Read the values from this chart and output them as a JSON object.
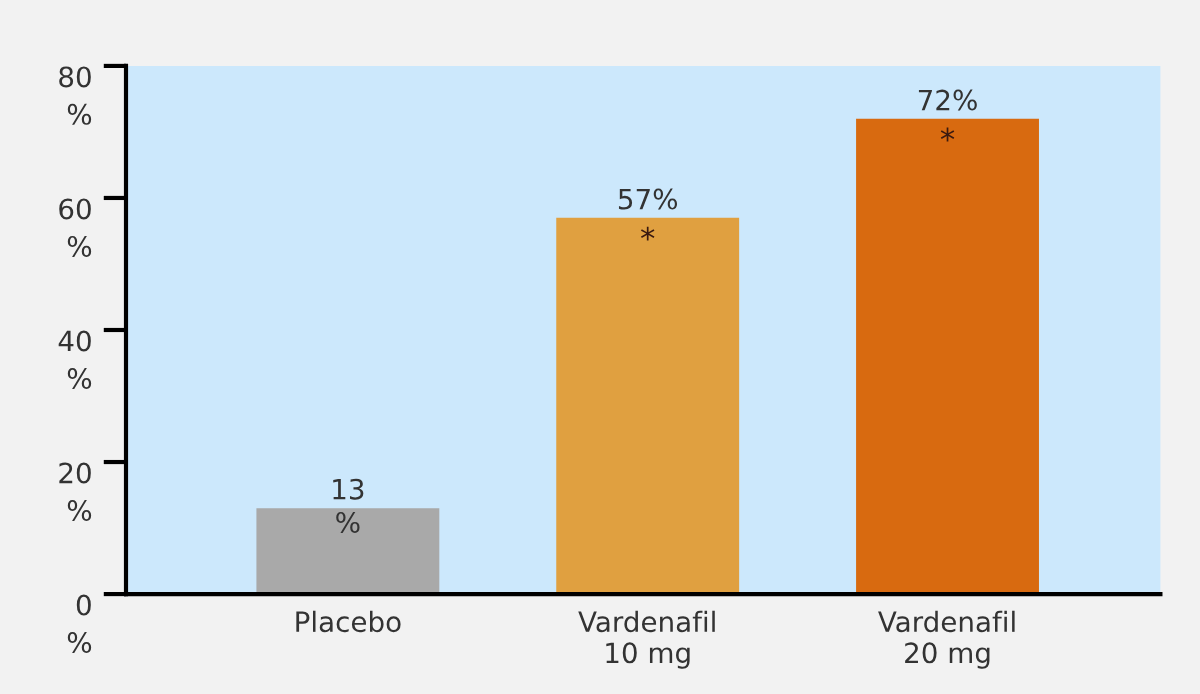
{
  "chart_data": {
    "type": "bar",
    "categories": [
      "Placebo",
      "Vardenafil\n10 mg",
      "Vardenafil\n20 mg"
    ],
    "values": [
      13,
      57,
      72
    ],
    "colors": [
      "#a9a9a9",
      "#e0a040",
      "#d86a10"
    ],
    "value_labels": [
      "13\n%",
      "57%",
      "72%"
    ],
    "annotations": [
      {
        "text": "*",
        "x": "Vardenafil\n10 mg",
        "y": 57
      },
      {
        "text": "*",
        "x": "Vardenafil\n20 mg",
        "y": 72
      }
    ],
    "ylim": [
      0,
      80
    ],
    "yticks": [
      {
        "value": 0,
        "label": "0\n%"
      },
      {
        "value": 20,
        "label": "20\n%"
      },
      {
        "value": 40,
        "label": "40\n%"
      },
      {
        "value": 60,
        "label": "60\n%"
      },
      {
        "value": 80,
        "label": "80\n%"
      }
    ],
    "grid": false,
    "legend": false
  }
}
